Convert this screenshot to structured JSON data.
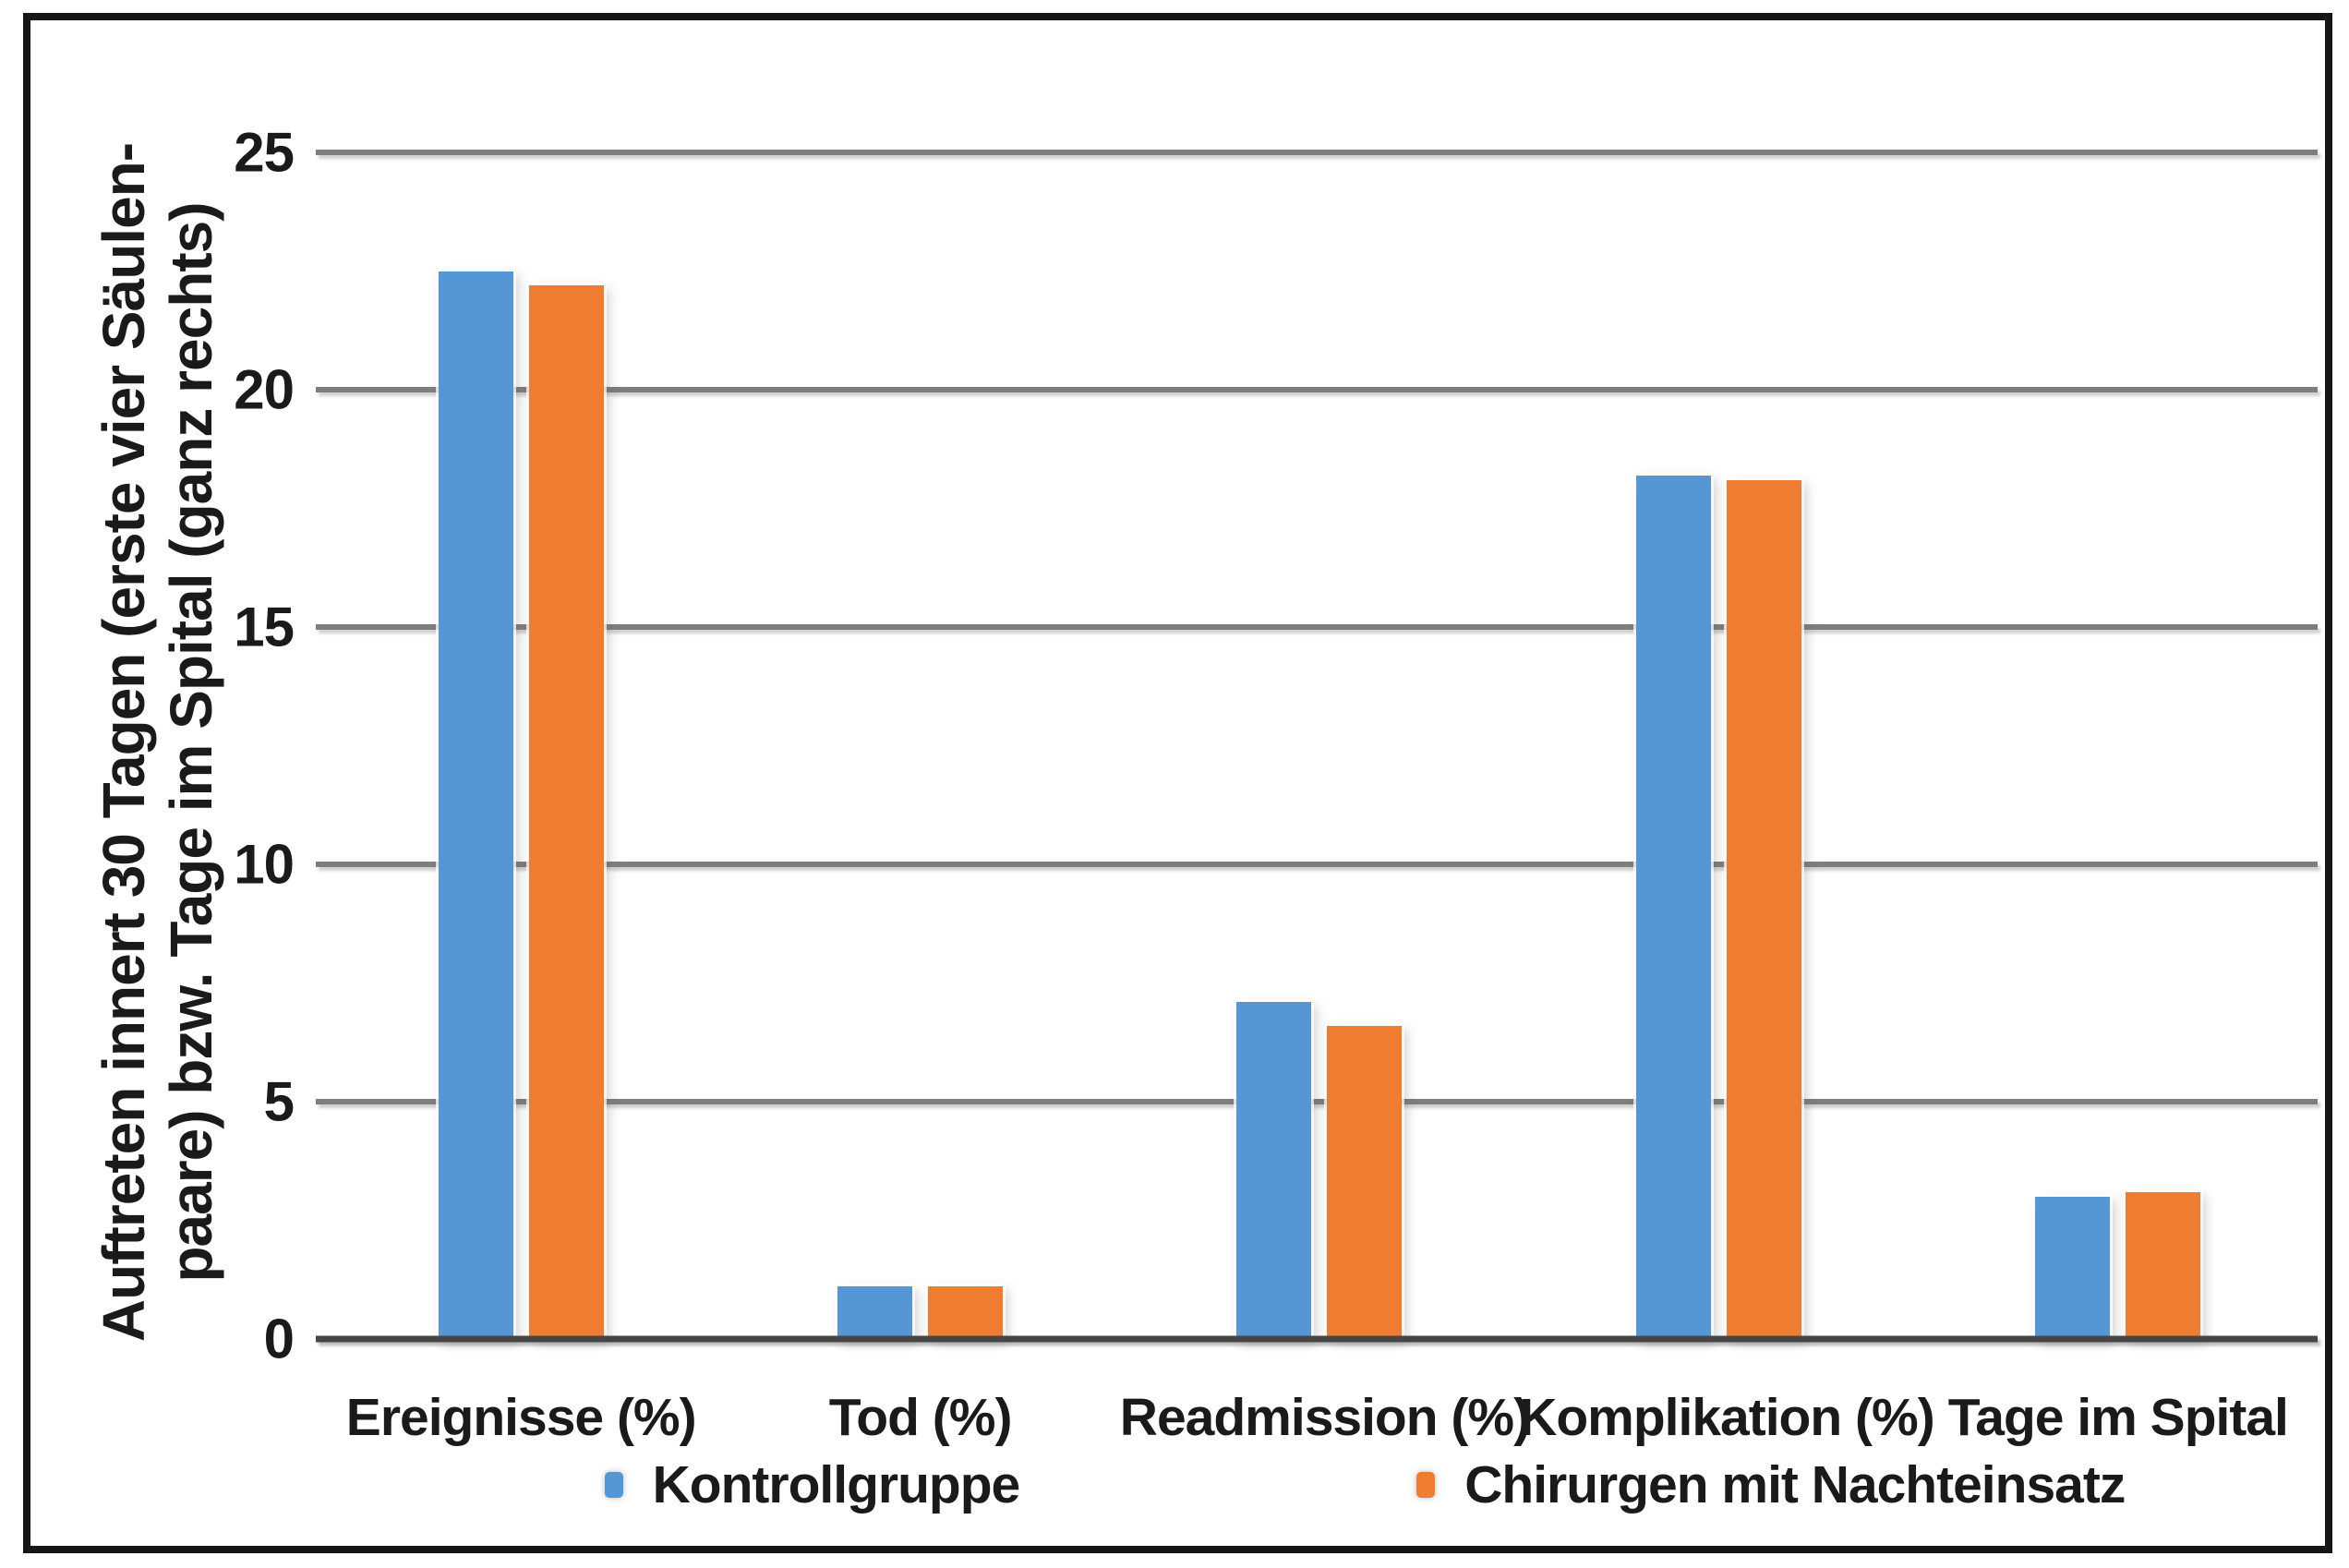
{
  "chart_data": {
    "type": "bar",
    "title": "",
    "categories": [
      "Ereignisse (%)",
      "Tod (%)",
      "Readmission (%)",
      "Komplikation (%)",
      "Tage im Spital"
    ],
    "series": [
      {
        "name": "Kontrollgruppe",
        "color": "#5596d4",
        "values": [
          22.5,
          1.1,
          7.1,
          18.2,
          3.0
        ]
      },
      {
        "name": "Chirurgen mit Nachteinsatz",
        "color": "#ee7d31",
        "values": [
          22.2,
          1.1,
          6.6,
          18.1,
          3.1
        ]
      }
    ],
    "ylabel_line1": "Auftreten innert 30 Tagen (erste vier Säulen-",
    "ylabel_line2": "paare) bzw. Tage im Spital (ganz rechts)",
    "xlabel": "",
    "yticks": [
      0,
      5,
      10,
      15,
      20,
      25
    ],
    "ylim": [
      0,
      25
    ],
    "grid": true,
    "gridline_color": "#7e7e7e",
    "baseline_color": "#454545",
    "frame_color": "#161616",
    "legend_position": "bottom"
  }
}
